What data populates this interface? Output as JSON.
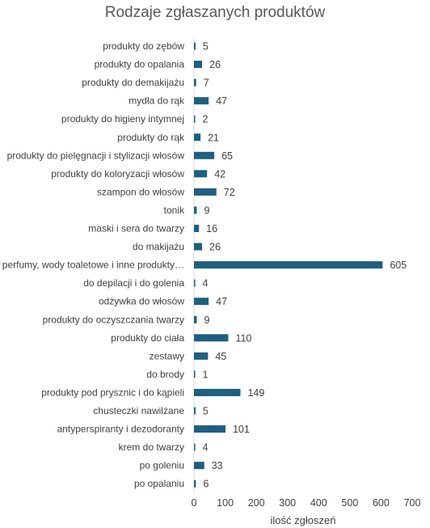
{
  "chart_data": {
    "type": "bar",
    "orientation": "horizontal",
    "title": "Rodzaje zgłaszanych produktów",
    "xlabel": "ilość zgłoszeń",
    "ylabel": "",
    "xlim": [
      0,
      700
    ],
    "x_ticks": [
      "0",
      "100",
      "200",
      "300",
      "400",
      "500",
      "600",
      "700"
    ],
    "grid": false,
    "legend": "none",
    "bar_color": "#1f5f7f",
    "text_color": "#404040",
    "categories": [
      "produkty do zębów",
      "produkty do opalania",
      "produkty do demakijażu",
      "mydła do rąk",
      "produkty do higieny intymnej",
      "produkty do rąk",
      "produkty do pielęgnacji i stylizacji włosów",
      "produkty do koloryzacji włosów",
      "szampon do włosów",
      "tonik",
      "maski i sera do twarzy",
      "do makijażu",
      "perfumy, wody toaletowe i inne produkty…",
      "do depilacji i do golenia",
      "odżywka do włosów",
      "produkty do oczyszczania twarzy",
      "produkty do ciała",
      "zestawy",
      "do brody",
      "produkty pod prysznic i do kąpieli",
      "chusteczki nawilżane",
      "antyperspiranty i dezodoranty",
      "krem do twarzy",
      "po goleniu",
      "po opalaniu"
    ],
    "values": [
      5,
      26,
      7,
      47,
      2,
      21,
      65,
      42,
      72,
      9,
      16,
      26,
      605,
      4,
      47,
      9,
      110,
      45,
      1,
      149,
      5,
      101,
      4,
      33,
      6
    ]
  }
}
